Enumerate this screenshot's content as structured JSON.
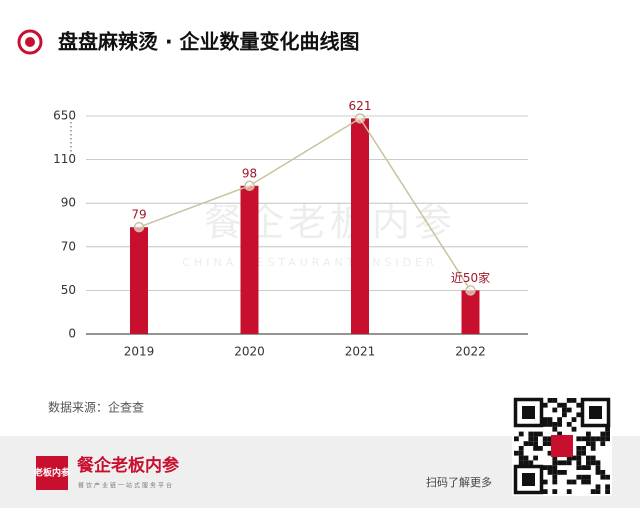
{
  "chart_data": {
    "type": "bar",
    "title": "盘盘麻辣烫 · 企业数量变化曲线图",
    "categories": [
      "2019",
      "2020",
      "2021",
      "2022"
    ],
    "values": [
      79,
      98,
      621,
      50
    ],
    "value_labels": [
      "79",
      "98",
      "621",
      "近50家"
    ],
    "color": "#c8102e",
    "line_color": "#c9c29e",
    "ylim": [
      0,
      650
    ],
    "yticks": [
      0,
      50,
      70,
      90,
      110,
      650
    ],
    "grid": true,
    "source": "数据来源：企查查",
    "watermark": "餐企老板内参",
    "watermark_sub": "CHINA RESTAURANT INSIDER"
  },
  "footer": {
    "brand": "餐企老板内参",
    "slogan": "餐饮产业链一站式服务平台",
    "logo": "老板内参",
    "qr_hint": "扫码了解更多"
  }
}
